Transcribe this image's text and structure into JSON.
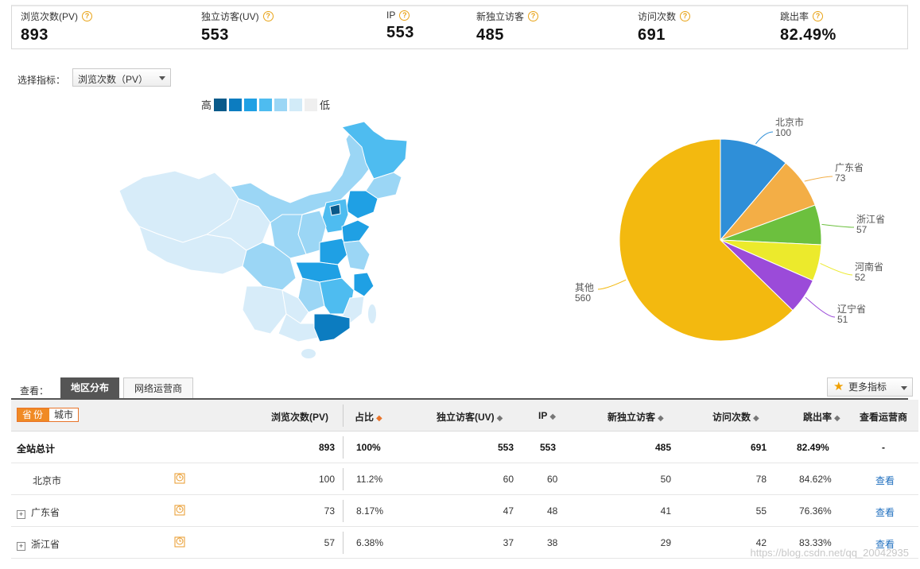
{
  "stats": [
    {
      "label": "浏览次数(PV)",
      "value": "893"
    },
    {
      "label": "独立访客(UV)",
      "value": "553"
    },
    {
      "label": "IP",
      "value": "553"
    },
    {
      "label": "新独立访客",
      "value": "485"
    },
    {
      "label": "访问次数",
      "value": "691"
    },
    {
      "label": "跳出率",
      "value": "82.49%"
    }
  ],
  "help_glyph": "?",
  "selector": {
    "label": "选择指标：",
    "value": "浏览次数（PV）"
  },
  "map_legend": {
    "high": "高",
    "low": "低",
    "colors": [
      "#0a5a8a",
      "#0c7cc0",
      "#1fa0e4",
      "#4ebcf0",
      "#9bd6f5",
      "#d2ebf8",
      "#efefef"
    ]
  },
  "chart_data": {
    "type": "pie",
    "slices": [
      {
        "label": "北京市",
        "value": 100,
        "color": "#2f8fd8"
      },
      {
        "label": "广东省",
        "value": 73,
        "color": "#f3ae46"
      },
      {
        "label": "浙江省",
        "value": 57,
        "color": "#6cc03e"
      },
      {
        "label": "河南省",
        "value": 52,
        "color": "#ecea2c"
      },
      {
        "label": "辽宁省",
        "value": 51,
        "color": "#9b4bd9"
      },
      {
        "label": "其他",
        "value": 560,
        "color": "#f3b90f"
      }
    ]
  },
  "tabs": {
    "see_label": "查看：",
    "items": [
      "地区分布",
      "网络运营商"
    ],
    "more_label": "更多指标"
  },
  "table": {
    "toggle": [
      "省份",
      "城市"
    ],
    "headers": [
      "浏览次数(PV)",
      "占比",
      "独立访客(UV)",
      "IP",
      "新独立访客",
      "访问次数",
      "跳出率",
      "查看运营商"
    ],
    "sort_glyph": "◆",
    "total": {
      "name": "全站总计",
      "pv": "893",
      "ratio": "100%",
      "uv": "553",
      "ip": "553",
      "new": "485",
      "visits": "691",
      "bounce": "82.49%",
      "isp": "-"
    },
    "rows": [
      {
        "name": "北京市",
        "expandable": false,
        "pv": "100",
        "ratio": "11.2%",
        "uv": "60",
        "ip": "60",
        "new": "50",
        "visits": "78",
        "bounce": "84.62%",
        "isp": "查看"
      },
      {
        "name": "广东省",
        "expandable": true,
        "pv": "73",
        "ratio": "8.17%",
        "uv": "47",
        "ip": "48",
        "new": "41",
        "visits": "55",
        "bounce": "76.36%",
        "isp": "查看"
      },
      {
        "name": "浙江省",
        "expandable": true,
        "pv": "57",
        "ratio": "6.38%",
        "uv": "37",
        "ip": "38",
        "new": "29",
        "visits": "42",
        "bounce": "83.33%",
        "isp": "查看"
      }
    ],
    "expand_glyph": "+"
  },
  "watermark": "https://blog.csdn.net/qq_20042935"
}
